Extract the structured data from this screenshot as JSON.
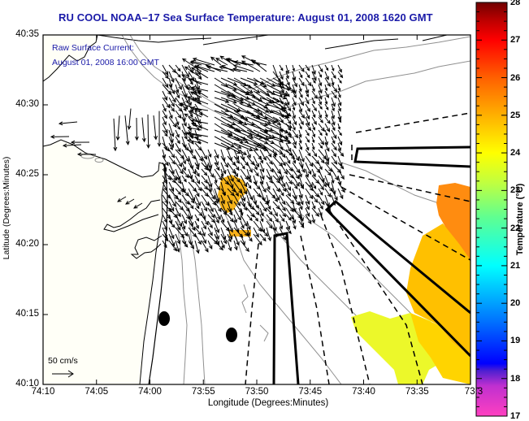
{
  "title": "RU COOL  NOAA–17  Sea Surface Temperature:  August 01, 2008 1620 GMT",
  "annotation": {
    "line1": "Raw Surface Current:",
    "line2": "August 01, 2008 16:00 GMT"
  },
  "scale_vector": {
    "label": "50 cm/s",
    "magnitude_cm_s": 50
  },
  "axes": {
    "x_title": "Longitude (Degrees:Minutes)",
    "y_title": "Latitude (Degrees:Minutes)",
    "x_ticks": [
      "74:10",
      "74:05",
      "74:00",
      "73:55",
      "73:50",
      "73:45",
      "73:40",
      "73:35",
      "73:3"
    ],
    "y_ticks": [
      "40:35",
      "40:30",
      "40:25",
      "40:20",
      "40:15",
      "40:10"
    ],
    "x_range_deg_min": [
      "74:10 W",
      "73:30 W"
    ],
    "y_range_deg_min": [
      "40:10 N",
      "40:35 N"
    ]
  },
  "colorbar": {
    "title": "Temperature (°C)",
    "min": 17,
    "max": 28,
    "ticks": [
      "28",
      "27",
      "26",
      "25",
      "24",
      "23",
      "22",
      "21",
      "20",
      "19",
      "18",
      "17"
    ],
    "stops": [
      {
        "v": 17,
        "c": "#ff40c0"
      },
      {
        "v": 17.8,
        "c": "#c030d0"
      },
      {
        "v": 18.2,
        "c": "#5020d0"
      },
      {
        "v": 18.4,
        "c": "#0000ff"
      },
      {
        "v": 19.5,
        "c": "#0070ff"
      },
      {
        "v": 21,
        "c": "#00ffff"
      },
      {
        "v": 22.3,
        "c": "#60ff90"
      },
      {
        "v": 23.2,
        "c": "#c0ff40"
      },
      {
        "v": 24,
        "c": "#ffff00"
      },
      {
        "v": 25,
        "c": "#ffb000"
      },
      {
        "v": 26,
        "c": "#ff6000"
      },
      {
        "v": 27,
        "c": "#ff0000"
      },
      {
        "v": 27.5,
        "c": "#c00000"
      },
      {
        "v": 28,
        "c": "#700000"
      }
    ]
  },
  "colors": {
    "title": "#1a1aa8",
    "land": "#fffff7",
    "ocean": "#ffffff",
    "bathymetry": "#909090",
    "coast": "#000000",
    "vectors": "#000000"
  },
  "features": {
    "sst_patches_celsius": [
      {
        "name": "central-patch",
        "temp": 24.8
      },
      {
        "name": "small-bar",
        "temp": 24.7
      },
      {
        "name": "east-patch",
        "temp": 25.3
      },
      {
        "name": "southeast-patch",
        "temp": 23.8
      }
    ],
    "markers": [
      {
        "name": "buoy-marker-1",
        "lon": "73:59",
        "lat": "40:14"
      },
      {
        "name": "buoy-marker-2",
        "lon": "73:53",
        "lat": "40:13"
      }
    ]
  }
}
